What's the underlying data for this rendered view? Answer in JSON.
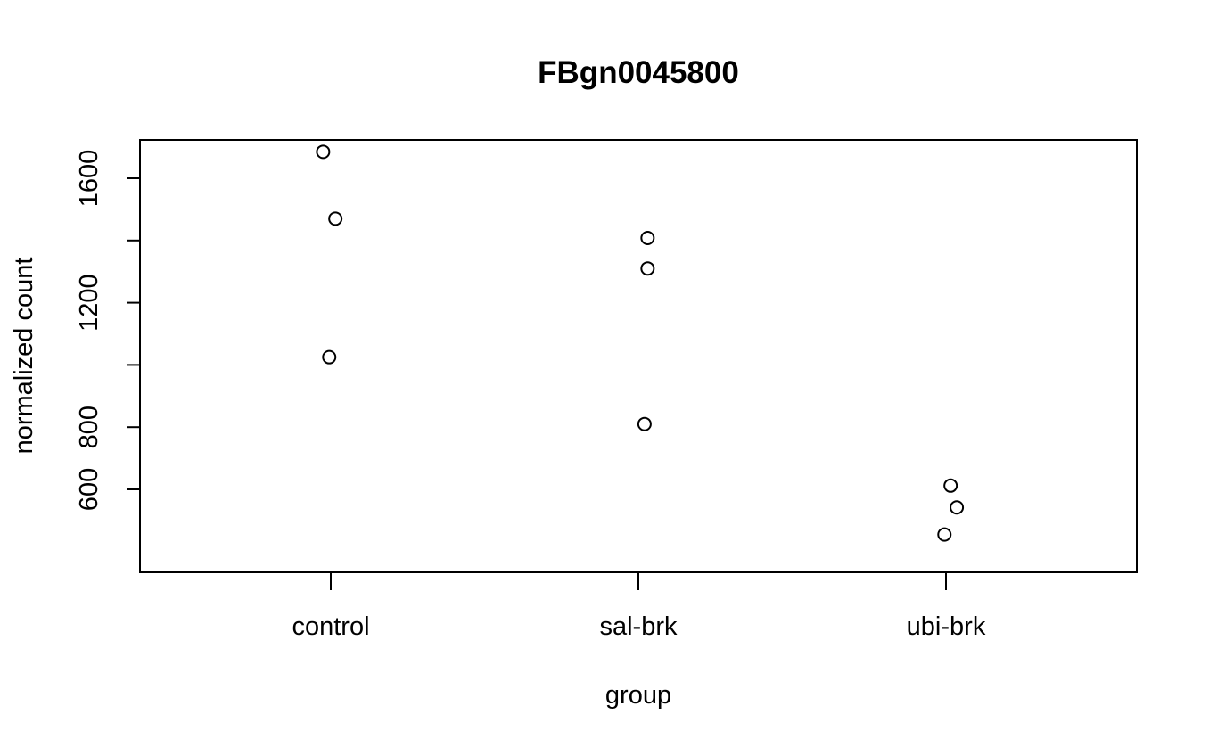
{
  "chart_data": {
    "type": "scatter",
    "title": "FBgn0045800",
    "xlabel": "group",
    "ylabel": "normalized count",
    "categories": [
      "control",
      "sal-brk",
      "ubi-brk"
    ],
    "yticks": [
      600,
      800,
      1200,
      1600
    ],
    "yticks_minor": [
      1000,
      1400
    ],
    "ylim": [
      400,
      1750
    ],
    "points": [
      {
        "group": "control",
        "jitter": -0.025,
        "value": 1685
      },
      {
        "group": "control",
        "jitter": 0.015,
        "value": 1470
      },
      {
        "group": "control",
        "jitter": -0.005,
        "value": 1025
      },
      {
        "group": "sal-brk",
        "jitter": 0.03,
        "value": 1408
      },
      {
        "group": "sal-brk",
        "jitter": 0.03,
        "value": 1310
      },
      {
        "group": "sal-brk",
        "jitter": 0.02,
        "value": 810
      },
      {
        "group": "ubi-brk",
        "jitter": 0.015,
        "value": 612
      },
      {
        "group": "ubi-brk",
        "jitter": 0.035,
        "value": 542
      },
      {
        "group": "ubi-brk",
        "jitter": -0.005,
        "value": 455
      }
    ]
  }
}
